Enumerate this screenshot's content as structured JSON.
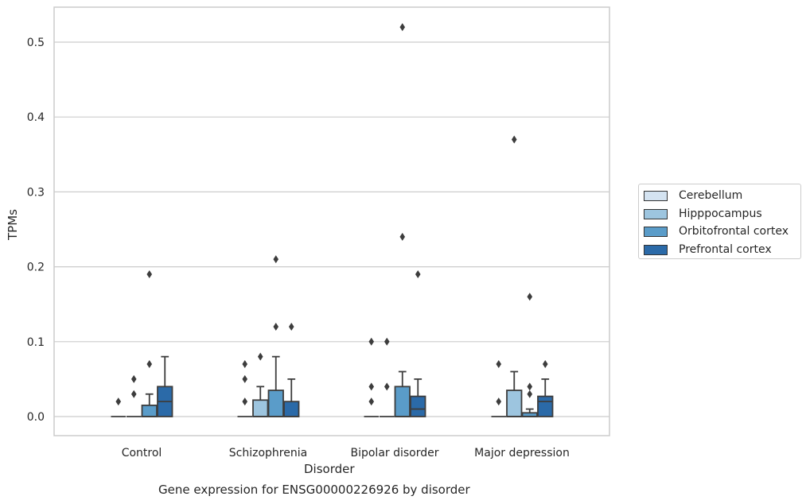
{
  "chart_data": {
    "type": "box",
    "title": "Gene expression for ENSG00000226926 by disorder",
    "xlabel": "Disorder",
    "ylabel": "TPMs",
    "ylim": [
      -0.025,
      0.545
    ],
    "yticks": [
      "0.0",
      "0.1",
      "0.2",
      "0.3",
      "0.4",
      "0.5"
    ],
    "ytick_values": [
      0,
      0.1,
      0.2,
      0.3,
      0.4,
      0.5
    ],
    "grid": true,
    "legend_position": "right",
    "categories": [
      "Control",
      "Schizophrenia",
      "Bipolar disorder",
      "Major depression"
    ],
    "series": [
      {
        "name": "Cerebellum",
        "color": "#d4e3f1",
        "boxes": [
          {
            "q1": 0,
            "median": 0,
            "q3": 0,
            "whisker_low": 0,
            "whisker_high": 0,
            "outliers": [
              0.02
            ]
          },
          {
            "q1": 0,
            "median": 0,
            "q3": 0,
            "whisker_low": 0,
            "whisker_high": 0,
            "outliers": [
              0.02,
              0.05,
              0.07
            ]
          },
          {
            "q1": 0,
            "median": 0,
            "q3": 0,
            "whisker_low": 0,
            "whisker_high": 0,
            "outliers": [
              0.02,
              0.04,
              0.1
            ]
          },
          {
            "q1": 0,
            "median": 0,
            "q3": 0,
            "whisker_low": 0,
            "whisker_high": 0,
            "outliers": [
              0.02,
              0.07
            ]
          }
        ]
      },
      {
        "name": "Hipppocampus",
        "color": "#9dc5df",
        "boxes": [
          {
            "q1": 0,
            "median": 0,
            "q3": 0,
            "whisker_low": 0,
            "whisker_high": 0,
            "outliers": [
              0.03,
              0.05
            ]
          },
          {
            "q1": 0,
            "median": 0,
            "q3": 0.022,
            "whisker_low": 0,
            "whisker_high": 0.04,
            "outliers": [
              0.08
            ]
          },
          {
            "q1": 0,
            "median": 0,
            "q3": 0,
            "whisker_low": 0,
            "whisker_high": 0,
            "outliers": [
              0.04,
              0.1
            ]
          },
          {
            "q1": 0,
            "median": 0,
            "q3": 0.035,
            "whisker_low": 0,
            "whisker_high": 0.06,
            "outliers": [
              0.37
            ]
          }
        ]
      },
      {
        "name": "Orbitofrontal cortex",
        "color": "#5a9cc9",
        "boxes": [
          {
            "q1": 0,
            "median": 0,
            "q3": 0.015,
            "whisker_low": 0,
            "whisker_high": 0.03,
            "outliers": [
              0.07,
              0.19
            ]
          },
          {
            "q1": 0,
            "median": 0,
            "q3": 0.035,
            "whisker_low": 0,
            "whisker_high": 0.08,
            "outliers": [
              0.12,
              0.21
            ]
          },
          {
            "q1": 0,
            "median": 0,
            "q3": 0.04,
            "whisker_low": 0,
            "whisker_high": 0.06,
            "outliers": [
              0.24,
              0.52
            ]
          },
          {
            "q1": 0,
            "median": 0,
            "q3": 0.005,
            "whisker_low": 0,
            "whisker_high": 0.01,
            "outliers": [
              0.03,
              0.04,
              0.16
            ]
          }
        ]
      },
      {
        "name": "Prefrontal cortex",
        "color": "#2b6aa8",
        "boxes": [
          {
            "q1": 0,
            "median": 0.02,
            "q3": 0.04,
            "whisker_low": 0,
            "whisker_high": 0.08,
            "outliers": []
          },
          {
            "q1": 0,
            "median": 0,
            "q3": 0.02,
            "whisker_low": 0,
            "whisker_high": 0.05,
            "outliers": [
              0.12
            ]
          },
          {
            "q1": 0,
            "median": 0.01,
            "q3": 0.027,
            "whisker_low": 0,
            "whisker_high": 0.05,
            "outliers": [
              0.19
            ]
          },
          {
            "q1": 0,
            "median": 0.02,
            "q3": 0.027,
            "whisker_low": 0,
            "whisker_high": 0.05,
            "outliers": [
              0.07
            ]
          }
        ]
      }
    ]
  }
}
